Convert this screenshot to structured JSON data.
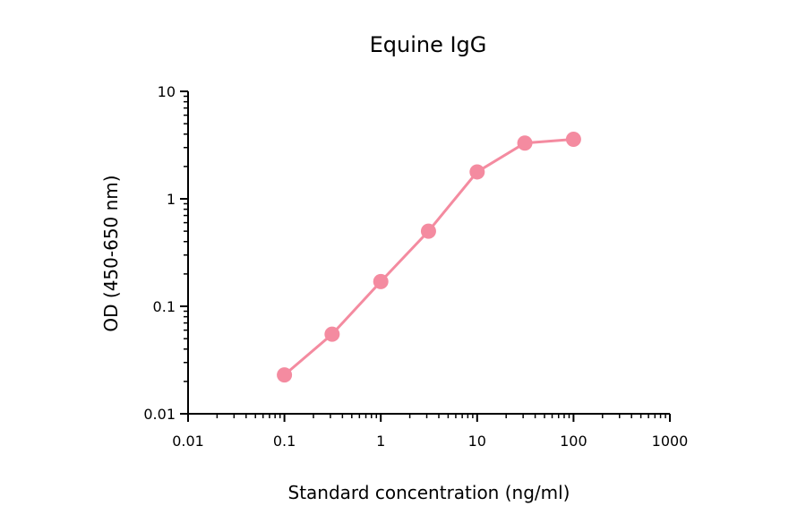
{
  "chart_data": {
    "type": "line",
    "title": "Equine IgG",
    "xlabel": "Standard concentration (ng/ml)",
    "ylabel": "OD (450-650 nm)",
    "xscale": "log",
    "yscale": "log",
    "xlim": [
      0.01,
      1000
    ],
    "ylim": [
      0.01,
      10
    ],
    "grid": false,
    "x_ticks": [
      "0.01",
      "0.1",
      "1",
      "10",
      "100",
      "1000"
    ],
    "y_ticks": [
      "0.01",
      "0.1",
      "1",
      "10"
    ],
    "series": [
      {
        "color": "#f48ba0",
        "marker": "circle",
        "x": [
          0.1,
          0.3125,
          1,
          3.125,
          10,
          31.25,
          100
        ],
        "y": [
          0.023,
          0.055,
          0.17,
          0.5,
          1.78,
          3.3,
          3.58
        ]
      }
    ]
  }
}
